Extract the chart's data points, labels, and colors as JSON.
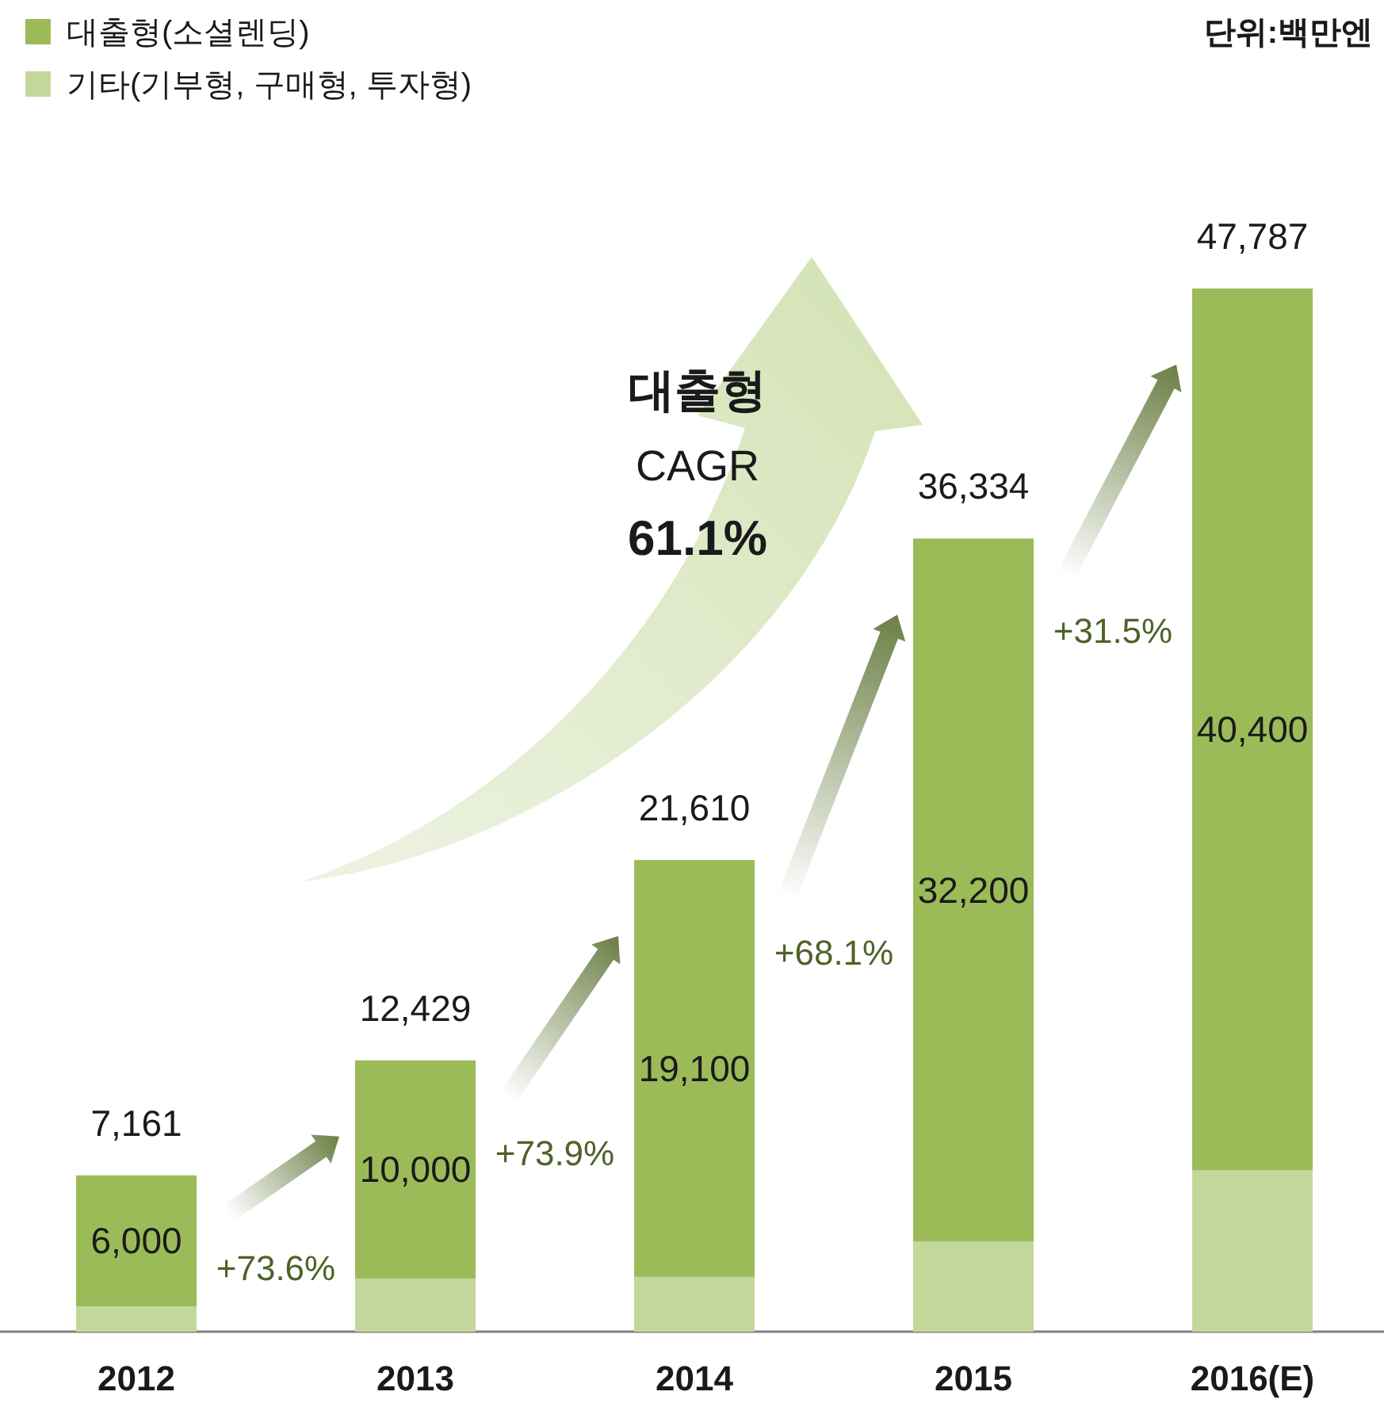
{
  "chart_data": {
    "type": "bar",
    "stacked": true,
    "categories": [
      "2012",
      "2013",
      "2014",
      "2015",
      "2016(E)"
    ],
    "series": [
      {
        "name": "기타(기부형, 구매형, 투자형)",
        "color": "#c4d79b",
        "values": [
          1161,
          2429,
          2510,
          4134,
          7387
        ]
      },
      {
        "name": "대출형(소셜렌딩)",
        "color": "#9bbb59",
        "values": [
          6000,
          10000,
          19100,
          32200,
          40400
        ],
        "value_labels": [
          "6,000",
          "10,000",
          "19,100",
          "32,200",
          "40,400"
        ]
      }
    ],
    "totals": [
      "7,161",
      "12,429",
      "21,610",
      "36,334",
      "47,787"
    ],
    "legend": "top left",
    "annotations": [
      "단위:백만엔",
      "대출형",
      "CAGR",
      "61.1%",
      "+73.6%",
      "+73.9%",
      "+68.1%",
      "+31.5%"
    ]
  }
}
